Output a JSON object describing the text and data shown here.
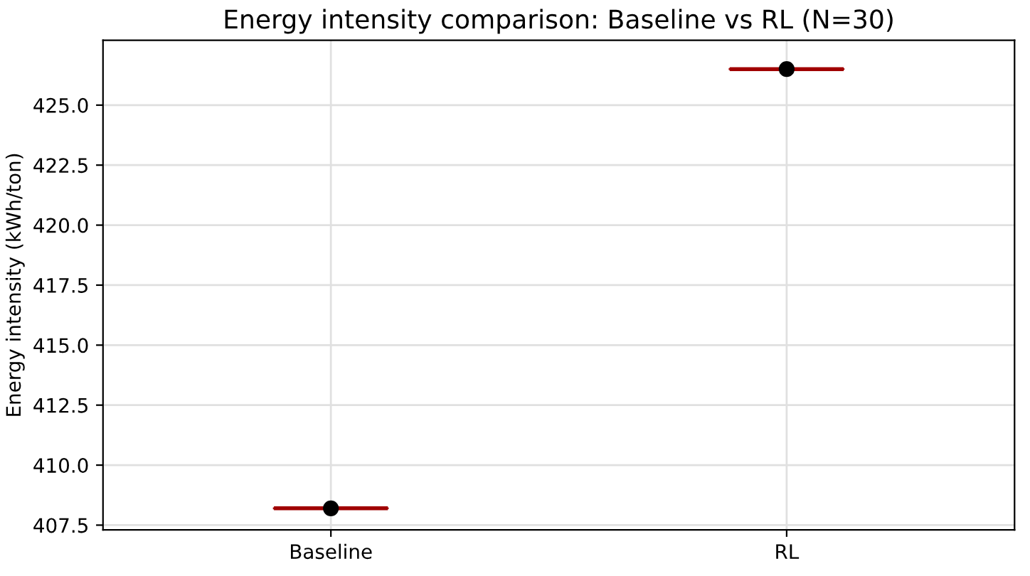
{
  "chart_data": {
    "type": "box",
    "title": "Energy intensity comparison: Baseline vs RL (N=30)",
    "ylabel": "Energy intensity (kWh/ton)",
    "categories": [
      "Baseline",
      "RL"
    ],
    "boxes": [
      {
        "low": 408.2,
        "q1": 408.2,
        "median": 408.2,
        "q3": 408.2,
        "high": 408.2,
        "mean": 408.2
      },
      {
        "low": 426.5,
        "q1": 426.5,
        "median": 426.5,
        "q3": 426.5,
        "high": 426.5,
        "mean": 426.5
      }
    ],
    "color": "#a00000",
    "ylim": [
      407.3,
      427.7
    ],
    "yticks": [
      {
        "value": 407.5,
        "label": "407.5"
      },
      {
        "value": 410,
        "label": "410.0"
      },
      {
        "value": 412.5,
        "label": "412.5"
      },
      {
        "value": 415,
        "label": "415.0"
      },
      {
        "value": 417.5,
        "label": "417.5"
      },
      {
        "value": 420,
        "label": "420.0"
      },
      {
        "value": 422.5,
        "label": "422.5"
      },
      {
        "value": 425,
        "label": "425.0"
      }
    ],
    "grid": true
  }
}
